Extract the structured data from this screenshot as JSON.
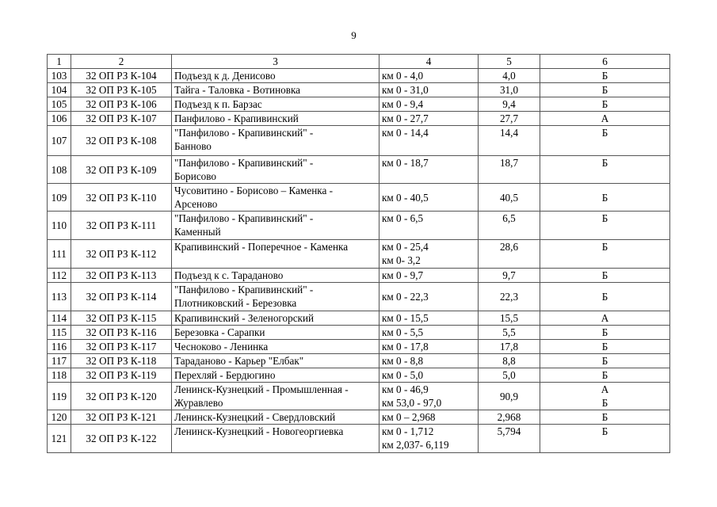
{
  "page_number": "9",
  "header": [
    "1",
    "2",
    "3",
    "4",
    "5",
    "6"
  ],
  "rows": [
    {
      "n": "103",
      "code": "32 ОП РЗ К-104",
      "name": [
        "Подъезд к д. Денисово"
      ],
      "km": [
        "км 0 - 4,0"
      ],
      "len": "4,0",
      "cat": [
        "Б"
      ]
    },
    {
      "n": "104",
      "code": "32 ОП РЗ К-105",
      "name": [
        "Тайга - Таловка - Вотиновка"
      ],
      "km": [
        "км 0 - 31,0"
      ],
      "len": "31,0",
      "cat": [
        "Б"
      ]
    },
    {
      "n": "105",
      "code": "32 ОП РЗ К-106",
      "name": [
        "Подъезд к п. Барзас"
      ],
      "km": [
        "км 0 - 9,4"
      ],
      "len": "9,4",
      "cat": [
        "Б"
      ]
    },
    {
      "n": "106",
      "code": "32 ОП РЗ К-107",
      "name": [
        "Панфилово - Крапивинский"
      ],
      "km": [
        "км 0 - 27,7"
      ],
      "len": "27,7",
      "cat": [
        "А"
      ]
    },
    {
      "n": "107",
      "code": "32 ОП РЗ К-108",
      "name": [
        "\"Панфилово - Крапивинский\" -",
        "Банново"
      ],
      "km": [
        "км 0 - 14,4"
      ],
      "len": "14,4",
      "cat": [
        "Б"
      ]
    },
    {
      "n": "108",
      "code": "32 ОП РЗ К-109",
      "name": [
        "\"Панфилово - Крапивинский\" -",
        "Борисово"
      ],
      "km": [
        "км 0 - 18,7"
      ],
      "len": "18,7",
      "cat": [
        "Б"
      ]
    },
    {
      "n": "109",
      "code": "32 ОП РЗ К-110",
      "name": [
        "Чусовитино - Борисово – Каменка -",
        "Арсеново"
      ],
      "km": [
        "км 0 - 40,5"
      ],
      "len": "40,5",
      "cat": [
        "Б"
      ]
    },
    {
      "n": "110",
      "code": "32 ОП РЗ К-111",
      "name": [
        "\"Панфилово - Крапивинский\" -",
        "Каменный"
      ],
      "km": [
        "км 0 - 6,5"
      ],
      "len": "6,5",
      "cat": [
        "Б"
      ]
    },
    {
      "n": "111",
      "code": "32 ОП РЗ К-112",
      "name": [
        "Крапивинский - Поперечное - Каменка"
      ],
      "km": [
        "км 0 - 25,4",
        "км 0- 3,2"
      ],
      "len": "28,6",
      "cat": [
        "Б"
      ]
    },
    {
      "n": "112",
      "code": "32 ОП РЗ К-113",
      "name": [
        "Подъезд к с. Тараданово"
      ],
      "km": [
        "км 0 - 9,7"
      ],
      "len": "9,7",
      "cat": [
        "Б"
      ]
    },
    {
      "n": "113",
      "code": "32 ОП РЗ К-114",
      "name": [
        "\"Панфилово - Крапивинский\" -",
        "Плотниковский - Березовка"
      ],
      "km": [
        "км 0 - 22,3"
      ],
      "len": "22,3",
      "cat": [
        "Б"
      ]
    },
    {
      "n": "114",
      "code": "32 ОП РЗ К-115",
      "name": [
        "Крапивинский - Зеленогорский"
      ],
      "km": [
        "км 0 - 15,5"
      ],
      "len": "15,5",
      "cat": [
        "А"
      ]
    },
    {
      "n": "115",
      "code": "32 ОП РЗ К-116",
      "name": [
        "Березовка - Сарапки"
      ],
      "km": [
        "км 0 - 5,5"
      ],
      "len": "5,5",
      "cat": [
        "Б"
      ]
    },
    {
      "n": "116",
      "code": "32 ОП РЗ К-117",
      "name": [
        "Чесноково - Ленинка"
      ],
      "km": [
        "км 0 - 17,8"
      ],
      "len": "17,8",
      "cat": [
        "Б"
      ]
    },
    {
      "n": "117",
      "code": "32 ОП РЗ К-118",
      "name": [
        "Тараданово - Карьер \"Елбак\""
      ],
      "km": [
        "км 0 - 8,8"
      ],
      "len": "8,8",
      "cat": [
        "Б"
      ]
    },
    {
      "n": "118",
      "code": "32 ОП РЗ К-119",
      "name": [
        "Перехляй - Бердюгино"
      ],
      "km": [
        "км 0 - 5,0"
      ],
      "len": "5,0",
      "cat": [
        "Б"
      ]
    },
    {
      "n": "119",
      "code": "32 ОП РЗ К-120",
      "name": [
        "Ленинск-Кузнецкий - Промышленная -",
        "Журавлево"
      ],
      "km": [
        "км 0 - 46,9",
        "км 53,0 - 97,0"
      ],
      "len": "90,9",
      "cat": [
        "А",
        "Б"
      ]
    },
    {
      "n": "120",
      "code": "32 ОП РЗ К-121",
      "name": [
        "Ленинск-Кузнецкий - Свердловский"
      ],
      "km": [
        "км 0 – 2,968"
      ],
      "len": "2,968",
      "cat": [
        "Б"
      ]
    },
    {
      "n": "121",
      "code": "32 ОП РЗ К-122",
      "name": [
        "Ленинск-Кузнецкий - Новогеоргиевка"
      ],
      "km": [
        "км 0 - 1,712",
        "км 2,037- 6,119"
      ],
      "len": "5,794",
      "cat": [
        "Б"
      ]
    }
  ]
}
